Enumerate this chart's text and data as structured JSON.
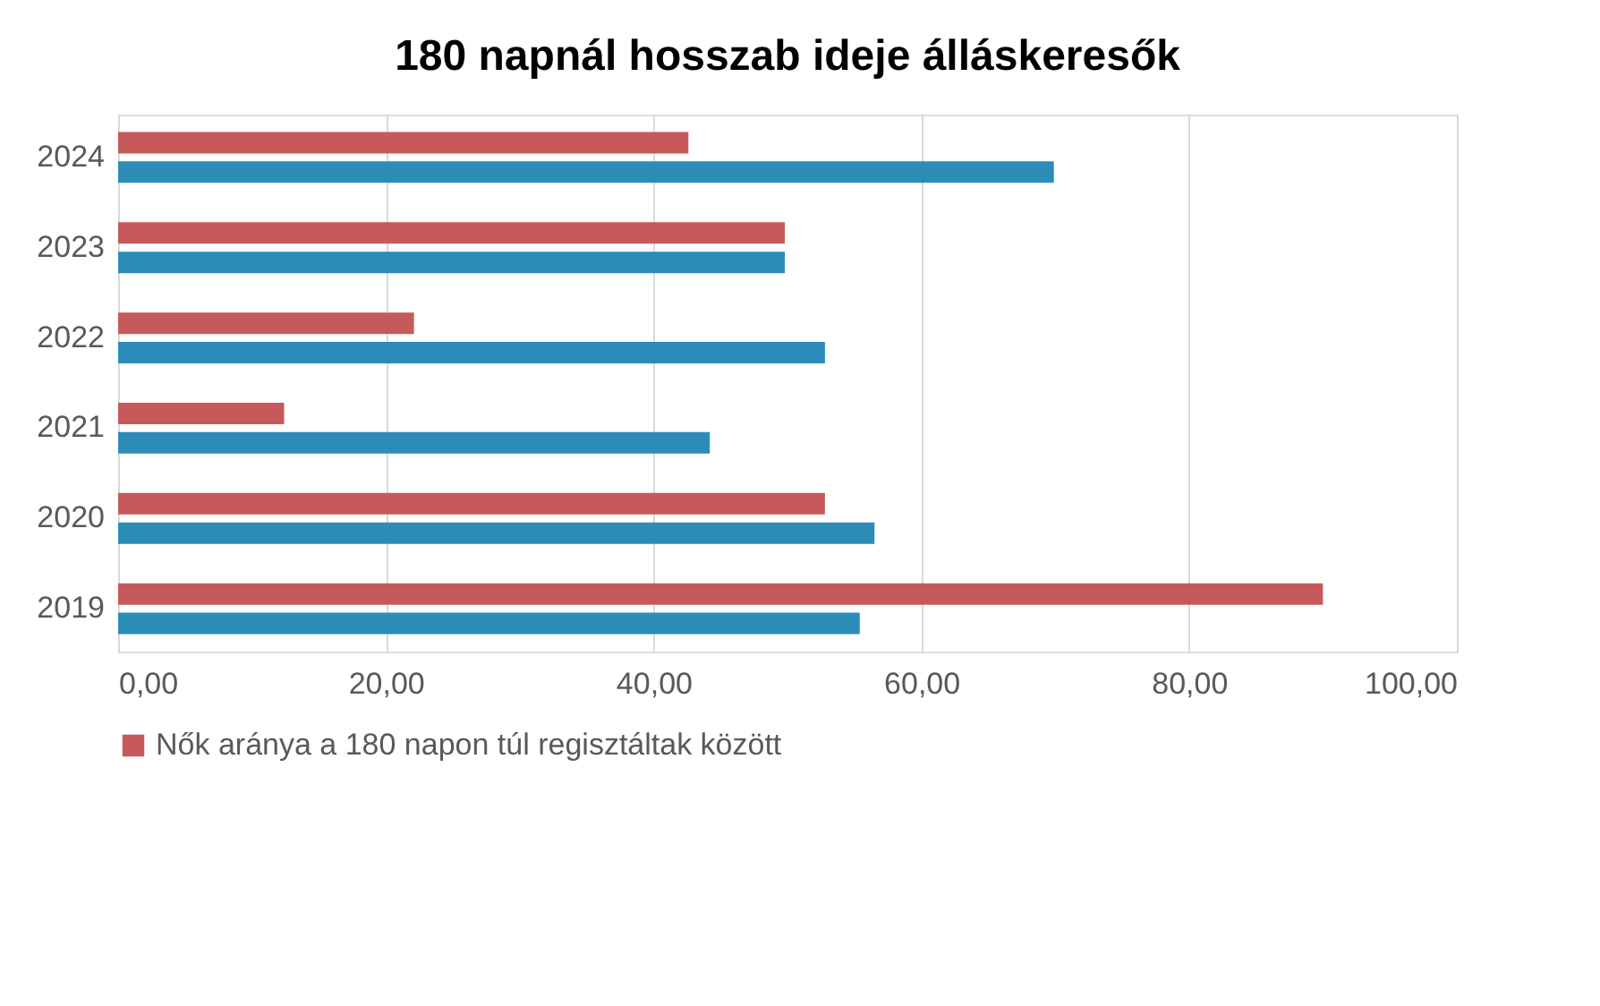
{
  "chart_data": {
    "type": "bar",
    "orientation": "horizontal",
    "title": "180 napnál hosszab ideje álláskeresők",
    "categories": [
      "2024",
      "2023",
      "2022",
      "2021",
      "2020",
      "2019"
    ],
    "series": [
      {
        "name": "Nők aránya a 180 napon túl regisztáltak között",
        "color": "#c65a5a",
        "values": [
          42.6,
          49.8,
          22.1,
          12.4,
          52.8,
          90.0
        ]
      },
      {
        "color": "#2b8cb8",
        "values": [
          69.9,
          49.8,
          52.8,
          44.2,
          56.5,
          55.4
        ]
      }
    ],
    "xlim": [
      0,
      100
    ],
    "xticks": [
      {
        "value": 0,
        "label": "0,00"
      },
      {
        "value": 20,
        "label": "20,00"
      },
      {
        "value": 40,
        "label": "40,00"
      },
      {
        "value": 60,
        "label": "60,00"
      },
      {
        "value": 80,
        "label": "80,00"
      },
      {
        "value": 100,
        "label": "100,00"
      }
    ],
    "grid": "x",
    "legend": "bottom"
  }
}
